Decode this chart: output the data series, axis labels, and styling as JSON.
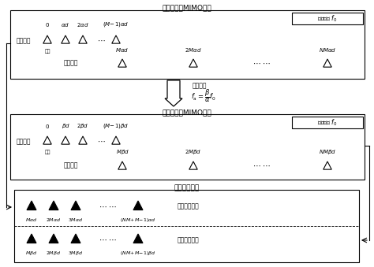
{
  "title_top": "实际的稀疏MIMO阵列",
  "title_mid": "等效的稀疏MIMO阵列",
  "title_bot": "双频和协同阵",
  "ref_label": "参考频率 $f_0$",
  "tx_label": "发射阵元",
  "rx_label": "接收阵元",
  "origin_label": "原点",
  "extra_freq": "额外频率",
  "ref1_label": "参考和协同阵",
  "ref2_label": "等效和协同阵",
  "bg_color": "#ffffff"
}
